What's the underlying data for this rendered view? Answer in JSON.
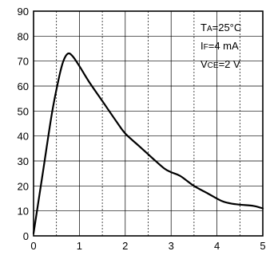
{
  "chart_data": {
    "type": "line",
    "title": "",
    "xlabel": "",
    "ylabel": "",
    "xlim": [
      0,
      5
    ],
    "ylim": [
      0,
      90
    ],
    "x_ticks": [
      "0",
      "1",
      "2",
      "3",
      "4",
      "5"
    ],
    "y_ticks": [
      "0",
      "10",
      "20",
      "30",
      "40",
      "50",
      "60",
      "70",
      "80",
      "90"
    ],
    "grid": true,
    "legend": "none",
    "annotations": [
      {
        "main": "T",
        "sub": "A",
        "rest": "=25°C"
      },
      {
        "main": "I",
        "sub": "F",
        "rest": "=4 mA"
      },
      {
        "main": "V",
        "sub": "CE",
        "rest": "=2 V"
      }
    ],
    "series": [
      {
        "color": "#000000",
        "x": [
          0.0,
          0.2,
          0.4,
          0.55,
          0.65,
          0.75,
          0.85,
          1.0,
          1.2,
          1.5,
          1.8,
          2.0,
          2.3,
          2.6,
          2.85,
          3.0,
          3.2,
          3.5,
          3.8,
          4.1,
          4.3,
          4.5,
          4.8,
          5.0
        ],
        "y": [
          1,
          25,
          49,
          63,
          70,
          73,
          72,
          68,
          62,
          54,
          46,
          41,
          36,
          31,
          27,
          25.5,
          24,
          20,
          17,
          14,
          13,
          12.5,
          12,
          11
        ]
      }
    ]
  }
}
